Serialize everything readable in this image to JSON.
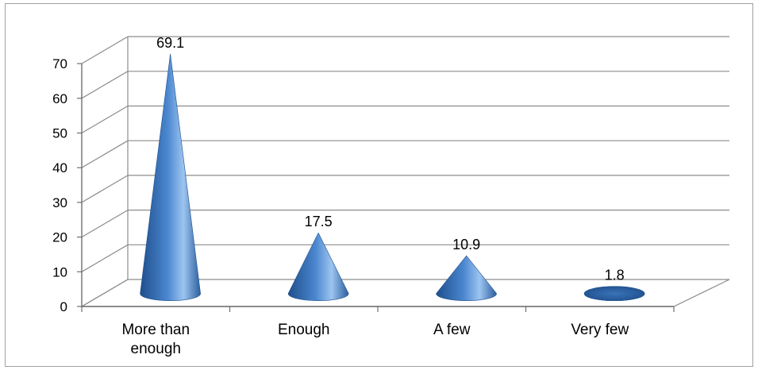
{
  "chart_data": {
    "type": "bar",
    "shape": "cone",
    "style": "3d",
    "categories": [
      "More than enough",
      "Enough",
      "A few",
      "Very few"
    ],
    "category_lines": [
      [
        "More than",
        "enough"
      ],
      [
        "Enough"
      ],
      [
        "A few"
      ],
      [
        "Very few"
      ]
    ],
    "values": [
      69.1,
      17.5,
      10.9,
      1.8
    ],
    "value_labels": [
      "69.1",
      "17.5",
      "10.9",
      "1.8"
    ],
    "ylim": [
      0,
      70
    ],
    "yticks": [
      0,
      10,
      20,
      30,
      40,
      50,
      60,
      70
    ],
    "ytick_labels": [
      "0",
      "10",
      "20",
      "30",
      "40",
      "50",
      "60",
      "70"
    ],
    "grid": true,
    "legend": "none",
    "title": "",
    "xlabel": "",
    "ylabel": "",
    "colors": {
      "cone_dark": "#1f4f8c",
      "cone_mid": "#4a86cf",
      "cone_light": "#9cc4f0",
      "grid": "#8c8c8c"
    }
  }
}
